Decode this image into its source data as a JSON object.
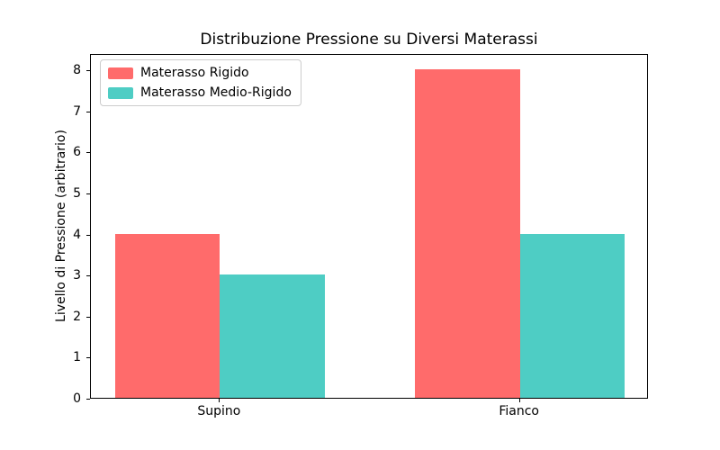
{
  "chart_data": {
    "type": "bar",
    "title": "Distribuzione Pressione su Diversi Materassi",
    "categories": [
      "Supino",
      "Fianco"
    ],
    "series": [
      {
        "name": "Materasso Rigido",
        "color": "#FF6B6B",
        "values": [
          4,
          8
        ]
      },
      {
        "name": "Materasso Medio-Rigido",
        "color": "#4ECDC4",
        "values": [
          3,
          4
        ]
      }
    ],
    "xlabel": "",
    "ylabel": "Livello di Pressione (arbitrario)",
    "ylim": [
      0,
      8.4
    ],
    "yticks": [
      0,
      1,
      2,
      3,
      4,
      5,
      6,
      7,
      8
    ],
    "xlim": [
      -0.43,
      1.43
    ],
    "bar_width": 0.35,
    "grid": false,
    "legend_position": "upper left"
  }
}
